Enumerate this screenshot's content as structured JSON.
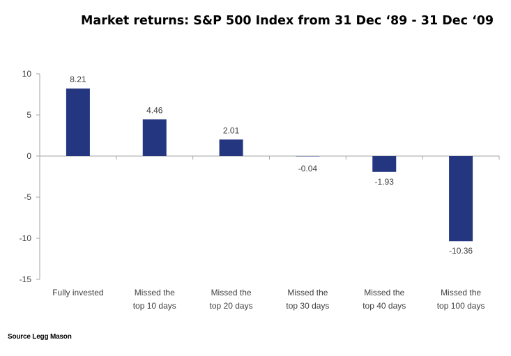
{
  "colors": {
    "bar": "#253680",
    "axis": "#a6a6a6",
    "text": "#404040"
  },
  "chart_data": {
    "type": "bar",
    "title": "Market returns: S&P 500 Index from 31 Dec ‘89 - 31 Dec ‘09",
    "categories": [
      [
        "Fully invested"
      ],
      [
        "Missed the",
        "top 10 days"
      ],
      [
        "Missed the",
        "top 20 days"
      ],
      [
        "Missed the",
        "top 30 days"
      ],
      [
        "Missed the",
        "top 40 days"
      ],
      [
        "Missed the",
        "top 100 days"
      ]
    ],
    "values": [
      8.21,
      4.46,
      2.01,
      -0.04,
      -1.93,
      -10.36
    ],
    "value_labels": [
      "8.21",
      "4.46",
      "2.01",
      "-0.04",
      "-1.93",
      "-10.36"
    ],
    "ylim": [
      -15,
      10
    ],
    "yticks": [
      10,
      5,
      0,
      -5,
      -10,
      -15
    ],
    "xlabel": "",
    "ylabel": "",
    "grid": false,
    "legend": "none"
  },
  "source": "Source Legg Mason"
}
